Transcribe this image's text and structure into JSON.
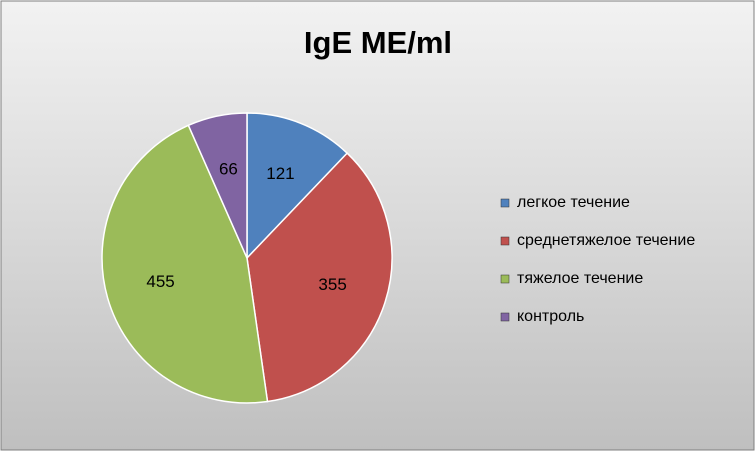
{
  "chart_data": {
    "type": "pie",
    "title": "IgE ME/ml",
    "categories": [
      "легкое течение",
      "среднетяжелое течение",
      "тяжелое течение",
      "контроль"
    ],
    "values": [
      121,
      355,
      455,
      66
    ],
    "colors": [
      "#4f81bd",
      "#c0504d",
      "#9bbb59",
      "#8064a2"
    ],
    "legend": "right"
  }
}
